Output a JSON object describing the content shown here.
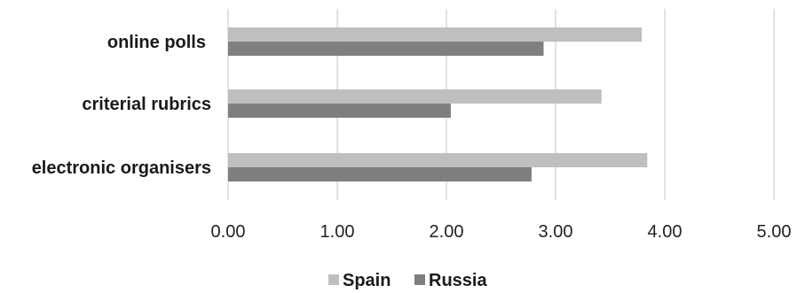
{
  "chart_data": {
    "type": "bar",
    "orientation": "horizontal",
    "categories": [
      "online polls",
      "criterial rubrics",
      "electronic organisers"
    ],
    "series": [
      {
        "name": "Spain",
        "color": "#bfbfbf",
        "values": [
          3.79,
          3.42,
          3.84
        ]
      },
      {
        "name": "Russia",
        "color": "#7f7f7f",
        "values": [
          2.89,
          2.04,
          2.78
        ]
      }
    ],
    "xlim": [
      0,
      5
    ],
    "xticks": [
      0,
      1,
      2,
      3,
      4,
      5
    ],
    "xtick_labels": [
      "0.00",
      "1.00",
      "2.00",
      "3.00",
      "4.00",
      "5.00"
    ],
    "grid": "vertical",
    "legend": "bottom",
    "title": "",
    "xlabel": "",
    "ylabel": ""
  }
}
